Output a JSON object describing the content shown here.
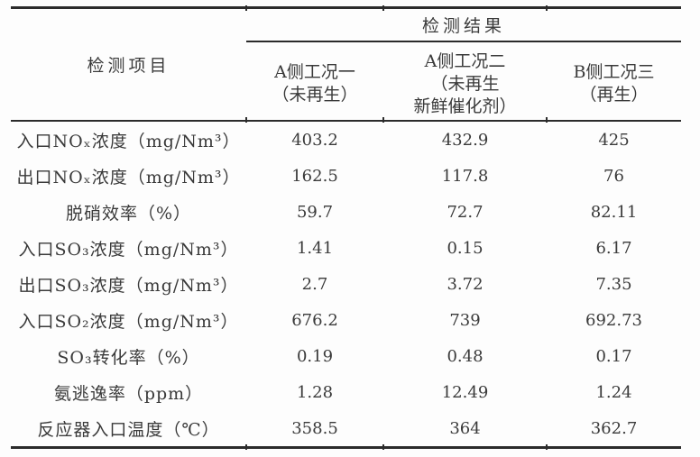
{
  "page": {
    "background_color": "#fdfdfd",
    "text_color": "#3a3a3a",
    "rule_color": "#2b2b2b"
  },
  "table": {
    "header": {
      "item_column_label": "检测项目",
      "result_group_label": "检测结果",
      "condition_columns": [
        "A侧工况一\n（未再生）",
        "A侧工况二\n（未再生\n新鲜催化剂）",
        "B侧工况三\n（再生）"
      ]
    },
    "rows": [
      {
        "label": "入口NOₓ浓度（mg/Nm³）",
        "values": [
          "403.2",
          "432.9",
          "425"
        ]
      },
      {
        "label": "出口NOₓ浓度（mg/Nm³）",
        "values": [
          "162.5",
          "117.8",
          "76"
        ]
      },
      {
        "label": "脱硝效率（%）",
        "values": [
          "59.7",
          "72.7",
          "82.11"
        ]
      },
      {
        "label": "入口SO₃浓度（mg/Nm³）",
        "values": [
          "1.41",
          "0.15",
          "6.17"
        ]
      },
      {
        "label": "出口SO₃浓度（mg/Nm³）",
        "values": [
          "2.7",
          "3.72",
          "7.35"
        ]
      },
      {
        "label": "入口SO₂浓度（mg/Nm³）",
        "values": [
          "676.2",
          "739",
          "692.73"
        ]
      },
      {
        "label": "SO₃转化率（%）",
        "values": [
          "0.19",
          "0.48",
          "0.17"
        ]
      },
      {
        "label": "氨逃逸率（ppm）",
        "values": [
          "1.28",
          "12.49",
          "1.24"
        ]
      },
      {
        "label": "反应器入口温度（℃）",
        "values": [
          "358.5",
          "364",
          "362.7"
        ]
      }
    ]
  }
}
